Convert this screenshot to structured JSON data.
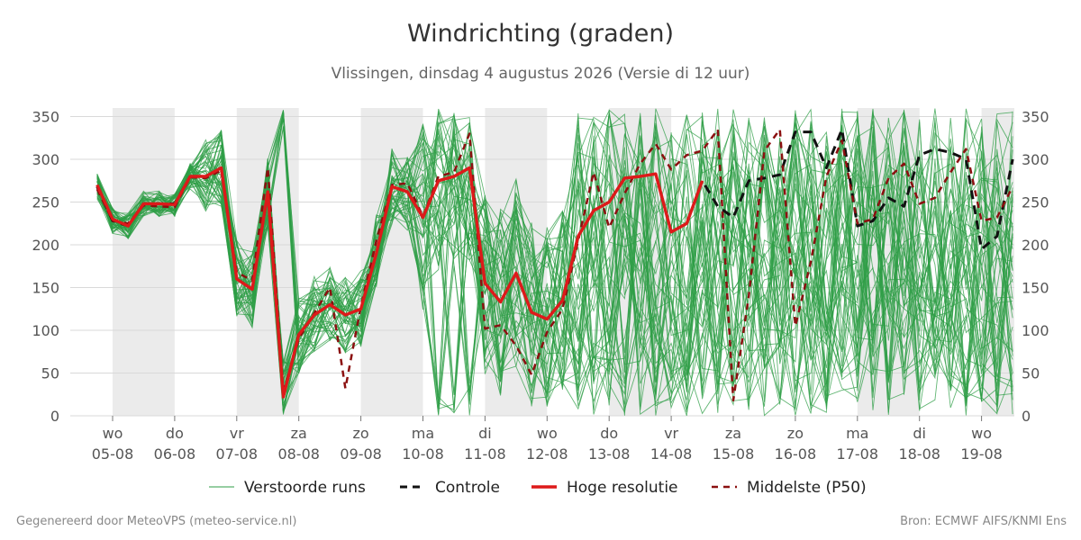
{
  "header": {
    "title": "Windrichting (graden)",
    "subtitle": "Vlissingen, dinsdag  4 augustus 2026 (Versie di 12 uur)"
  },
  "footer": {
    "left": "Gegenereerd door MeteoVPS (meteo-service.nl)",
    "right": "Bron: ECMWF AIFS/KNMI Ens"
  },
  "colors": {
    "ensemble": "#2e9e46",
    "control": "#111111",
    "high_res": "#dd1a1a",
    "median": "#8b1010",
    "night_band": "#ebebeb",
    "grid": "#d9d9d9"
  },
  "chart_data": {
    "type": "line",
    "title": "Windrichting (graden)",
    "ylim": [
      0,
      360
    ],
    "y_ticks": [
      0,
      50,
      100,
      150,
      200,
      250,
      300,
      350
    ],
    "xlim_days": [
      -0.7,
      14.5
    ],
    "x_ticks": [
      {
        "day": "wo",
        "date": "05-08"
      },
      {
        "day": "do",
        "date": "06-08"
      },
      {
        "day": "vr",
        "date": "07-08"
      },
      {
        "day": "za",
        "date": "08-08"
      },
      {
        "day": "zo",
        "date": "09-08"
      },
      {
        "day": "ma",
        "date": "10-08"
      },
      {
        "day": "di",
        "date": "11-08"
      },
      {
        "day": "wo",
        "date": "12-08"
      },
      {
        "day": "do",
        "date": "13-08"
      },
      {
        "day": "vr",
        "date": "14-08"
      },
      {
        "day": "za",
        "date": "15-08"
      },
      {
        "day": "zo",
        "date": "16-08"
      },
      {
        "day": "ma",
        "date": "17-08"
      },
      {
        "day": "di",
        "date": "18-08"
      },
      {
        "day": "wo",
        "date": "19-08"
      }
    ],
    "shaded_days": [
      "05-08",
      "07-08",
      "09-08",
      "11-08",
      "13-08",
      "17-08",
      "19-08"
    ],
    "grid": true,
    "legend_position": "bottom",
    "legend": [
      {
        "label": "Verstoorde runs",
        "style": "thin-green"
      },
      {
        "label": "Controle",
        "style": "black-dashed"
      },
      {
        "label": "Hoge resolutie",
        "style": "red-solid"
      },
      {
        "label": "Middelste (P50)",
        "style": "darkred-dashed"
      }
    ],
    "ensemble_members": 50,
    "series": [
      {
        "name": "Hoge resolutie",
        "x_days": [
          -0.25,
          0,
          0.25,
          0.5,
          0.75,
          1,
          1.25,
          1.5,
          1.75,
          2,
          2.25,
          2.5,
          2.75,
          3,
          3.25,
          3.5,
          3.75,
          4,
          4.25,
          4.5,
          4.75,
          5,
          5.25,
          5.5,
          5.75,
          6,
          6.25,
          6.5,
          6.75,
          7,
          7.25,
          7.5,
          7.75,
          8,
          8.25,
          8.5,
          8.75,
          9,
          9.25,
          9.5
        ],
        "values": [
          270,
          230,
          222,
          248,
          248,
          247,
          280,
          280,
          290,
          160,
          148,
          262,
          22,
          95,
          118,
          130,
          118,
          125,
          190,
          268,
          262,
          232,
          275,
          280,
          290,
          155,
          133,
          167,
          121,
          113,
          135,
          210,
          240,
          250,
          278,
          280,
          283,
          215,
          225,
          275
        ]
      },
      {
        "name": "Controle",
        "x_days": [
          -0.25,
          0,
          0.25,
          0.5,
          0.75,
          1,
          1.25,
          1.5,
          1.75,
          2,
          2.25,
          2.5,
          2.75,
          3,
          3.25,
          3.5,
          3.75,
          4,
          4.25,
          4.5,
          4.75,
          5,
          5.25,
          5.5,
          5.75,
          6,
          6.25,
          6.5,
          6.75,
          7,
          7.25,
          7.5,
          7.75,
          8,
          8.25,
          8.5,
          8.75,
          9,
          9.25,
          9.5,
          9.75,
          10,
          10.25,
          10.5,
          10.75,
          11,
          11.25,
          11.5,
          11.75,
          12,
          12.25,
          12.5,
          12.75,
          13,
          13.25,
          13.5,
          13.75,
          14,
          14.25,
          14.5
        ],
        "values": [
          268,
          228,
          222,
          248,
          248,
          248,
          280,
          280,
          290,
          160,
          148,
          262,
          22,
          95,
          118,
          130,
          118,
          125,
          190,
          268,
          262,
          232,
          275,
          280,
          290,
          155,
          133,
          167,
          121,
          113,
          135,
          210,
          240,
          250,
          278,
          280,
          283,
          215,
          225,
          275,
          245,
          232,
          275,
          278,
          282,
          332,
          332,
          290,
          335,
          222,
          228,
          255,
          245,
          305,
          312,
          308,
          300,
          195,
          210,
          300
        ]
      },
      {
        "name": "Middelste (P50)",
        "x_days": [
          -0.25,
          0,
          0.25,
          0.5,
          0.75,
          1,
          1.25,
          1.5,
          1.75,
          2,
          2.25,
          2.5,
          2.75,
          3,
          3.25,
          3.5,
          3.75,
          4,
          4.25,
          4.5,
          4.75,
          5,
          5.25,
          5.5,
          5.75,
          6,
          6.25,
          6.5,
          6.75,
          7,
          7.25,
          7.5,
          7.75,
          8,
          8.25,
          8.5,
          8.75,
          9,
          9.25,
          9.5,
          9.75,
          10,
          10.25,
          10.5,
          10.75,
          11,
          11.25,
          11.5,
          11.75,
          12,
          12.25,
          12.5,
          12.75,
          13,
          13.25,
          13.5,
          13.75,
          14,
          14.25,
          14.5
        ],
        "values": [
          265,
          228,
          225,
          246,
          245,
          244,
          279,
          278,
          287,
          168,
          158,
          290,
          28,
          90,
          120,
          150,
          32,
          128,
          205,
          270,
          272,
          233,
          280,
          285,
          330,
          102,
          106,
          82,
          48,
          98,
          125,
          205,
          285,
          220,
          260,
          295,
          318,
          288,
          305,
          310,
          335,
          18,
          140,
          310,
          335,
          105,
          180,
          280,
          322,
          225,
          230,
          278,
          295,
          248,
          255,
          285,
          312,
          228,
          232,
          268
        ]
      }
    ]
  }
}
